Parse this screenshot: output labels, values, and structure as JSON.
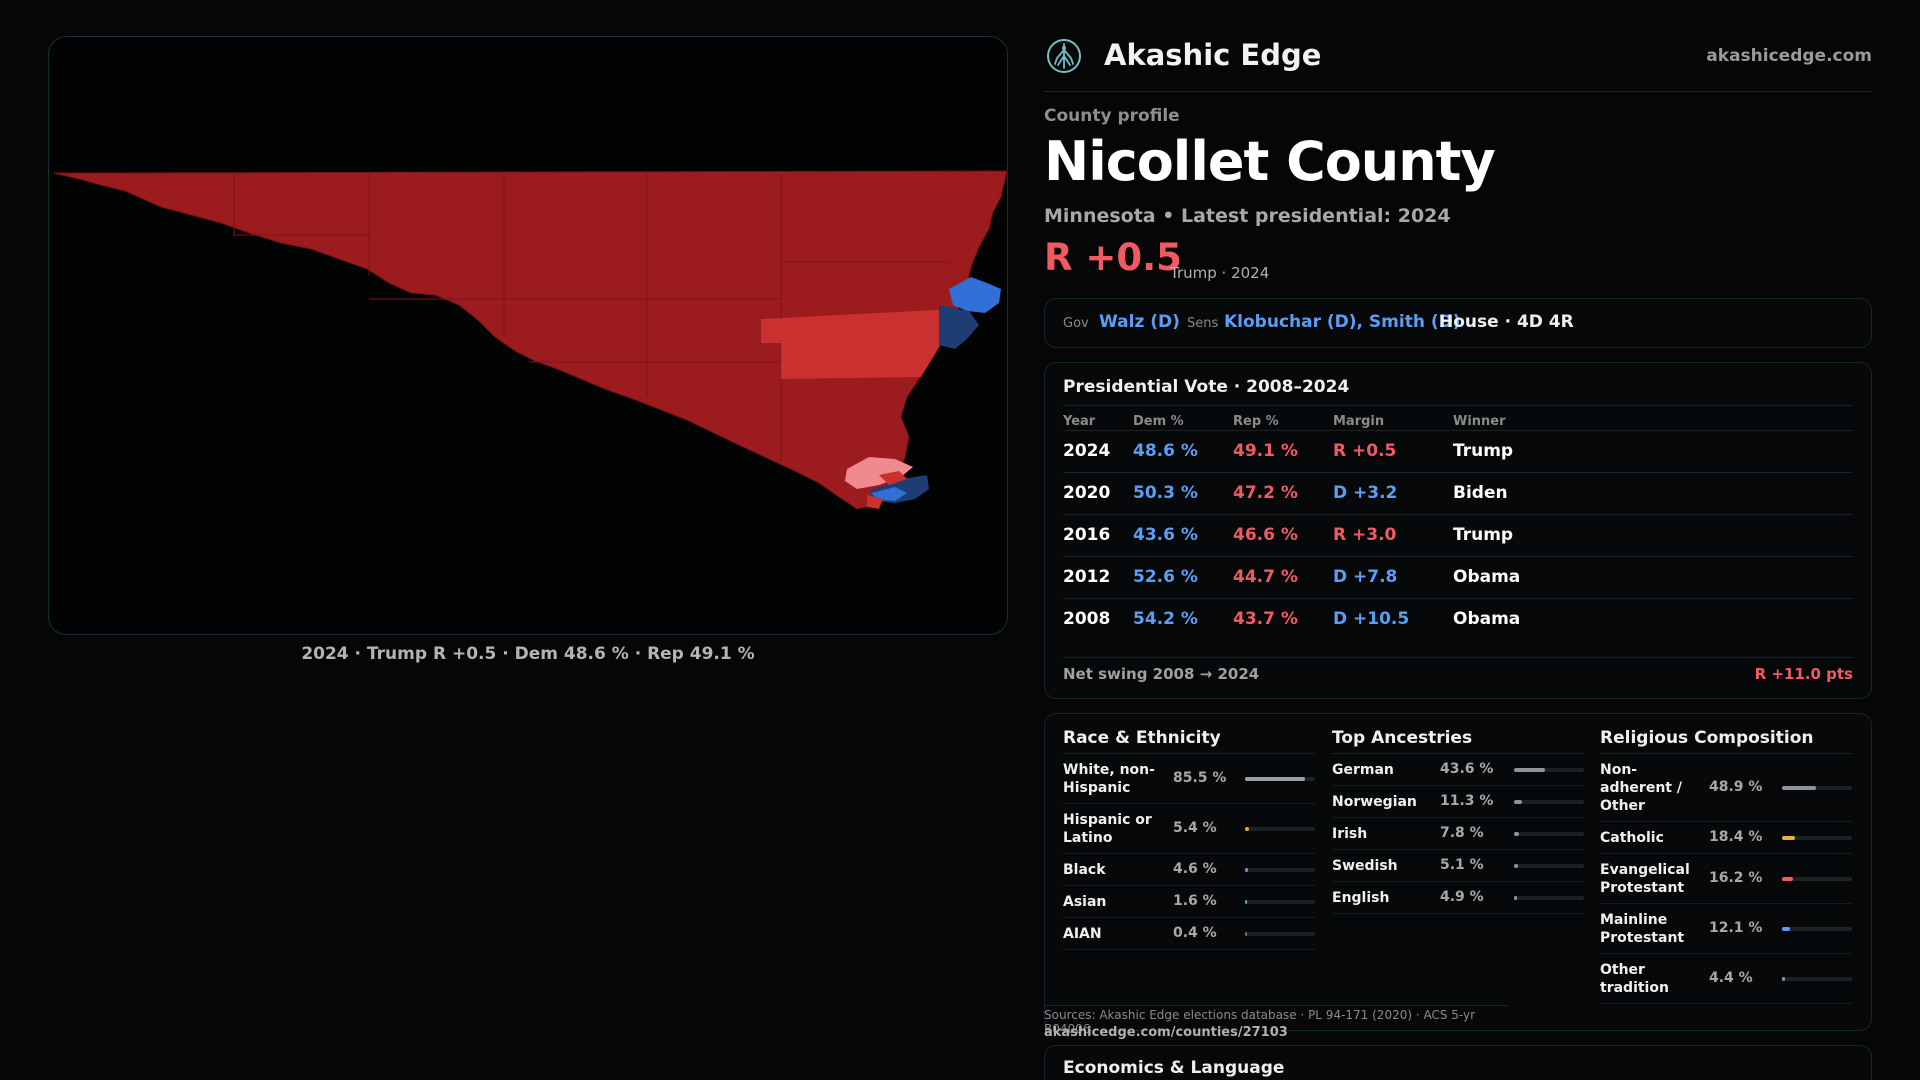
{
  "map": {
    "caption": "2024 · Trump R +0.5 · Dem 48.6 % · Rep 49.1 %",
    "colors": {
      "rep_strong": "#9b1b1f",
      "rep_lean": "#c9302e",
      "rep_light": "#f08a8f",
      "dem_strong": "#2f6fd6",
      "dem_dark": "#1d3d74",
      "background": "#020303"
    }
  },
  "brand": {
    "name": "Akashic Edge",
    "url": "akashicedge.com",
    "logo_icon": "tree-logo-icon"
  },
  "profile": {
    "label": "County profile",
    "title": "Nicollet County",
    "subtitle": "Minnesota • Latest presidential: 2024",
    "margin": "R +0.5",
    "margin_note": "Trump · 2024"
  },
  "officials": {
    "gov_label": "Gov",
    "gov_value": "Walz (D)",
    "sens_label": "Sens",
    "sens_value": "Klobuchar (D), Smith (D)",
    "house_value": "House · 4D 4R"
  },
  "presidential": {
    "title": "Presidential Vote · 2008–2024",
    "headers": {
      "year": "Year",
      "dem": "Dem %",
      "rep": "Rep %",
      "margin": "Margin",
      "winner": "Winner"
    },
    "rows": [
      {
        "year": "2024",
        "dem": "48.6 %",
        "rep": "49.1 %",
        "margin": "R +0.5",
        "party": "R",
        "winner": "Trump"
      },
      {
        "year": "2020",
        "dem": "50.3 %",
        "rep": "47.2 %",
        "margin": "D +3.2",
        "party": "D",
        "winner": "Biden"
      },
      {
        "year": "2016",
        "dem": "43.6 %",
        "rep": "46.6 %",
        "margin": "R +3.0",
        "party": "R",
        "winner": "Trump"
      },
      {
        "year": "2012",
        "dem": "52.6 %",
        "rep": "44.7 %",
        "margin": "D +7.8",
        "party": "D",
        "winner": "Obama"
      },
      {
        "year": "2008",
        "dem": "54.2 %",
        "rep": "43.7 %",
        "margin": "D +10.5",
        "party": "D",
        "winner": "Obama"
      }
    ],
    "swing_label": "Net swing 2008 → 2024",
    "swing_value": "R +11.0 pts",
    "colors": {
      "dem": "#5a9ff5",
      "rep": "#f25a63"
    }
  },
  "race": {
    "title": "Race & Ethnicity",
    "rows": [
      {
        "label": "White, non-\nHispanic",
        "value": "85.5 %",
        "pct": 85.5,
        "color": "#9aa0a6"
      },
      {
        "label": "Hispanic or\nLatino",
        "value": "5.4 %",
        "pct": 5.4,
        "color": "#e8a33a"
      },
      {
        "label": "Black",
        "value": "4.6 %",
        "pct": 4.6,
        "color": "#8a7cf0"
      },
      {
        "label": "Asian",
        "value": "1.6 %",
        "pct": 1.6,
        "color": "#3bb8a0"
      },
      {
        "label": "AIAN",
        "value": "0.4 %",
        "pct": 0.4,
        "color": "#7a6a50"
      }
    ]
  },
  "ancestries": {
    "title": "Top Ancestries",
    "rows": [
      {
        "label": "German",
        "value": "43.6 %",
        "pct": 43.6,
        "color": "#8e949a"
      },
      {
        "label": "Norwegian",
        "value": "11.3 %",
        "pct": 11.3,
        "color": "#8e949a"
      },
      {
        "label": "Irish",
        "value": "7.8 %",
        "pct": 7.8,
        "color": "#8e949a"
      },
      {
        "label": "Swedish",
        "value": "5.1 %",
        "pct": 5.1,
        "color": "#8e949a"
      },
      {
        "label": "English",
        "value": "4.9 %",
        "pct": 4.9,
        "color": "#8e949a"
      }
    ]
  },
  "religion": {
    "title": "Religious Composition",
    "rows": [
      {
        "label": "Non-\nadherent /\nOther",
        "value": "48.9 %",
        "pct": 48.9,
        "color": "#8e949a"
      },
      {
        "label": "Catholic",
        "value": "18.4 %",
        "pct": 18.4,
        "color": "#e8b23a"
      },
      {
        "label": "Evangelical\nProtestant",
        "value": "16.2 %",
        "pct": 16.2,
        "color": "#f25a63"
      },
      {
        "label": "Mainline\nProtestant",
        "value": "12.1 %",
        "pct": 12.1,
        "color": "#5a9ff5"
      },
      {
        "label": "Other\ntradition",
        "value": "4.4 %",
        "pct": 4.4,
        "color": "#8e949a"
      }
    ]
  },
  "footer": {
    "sources": "Sources: Akashic Edge elections database · PL 94-171 (2020) · ACS 5-yr B04006",
    "url": "akashicedge.com/counties/27103"
  },
  "economics": {
    "title": "Economics & Language"
  }
}
